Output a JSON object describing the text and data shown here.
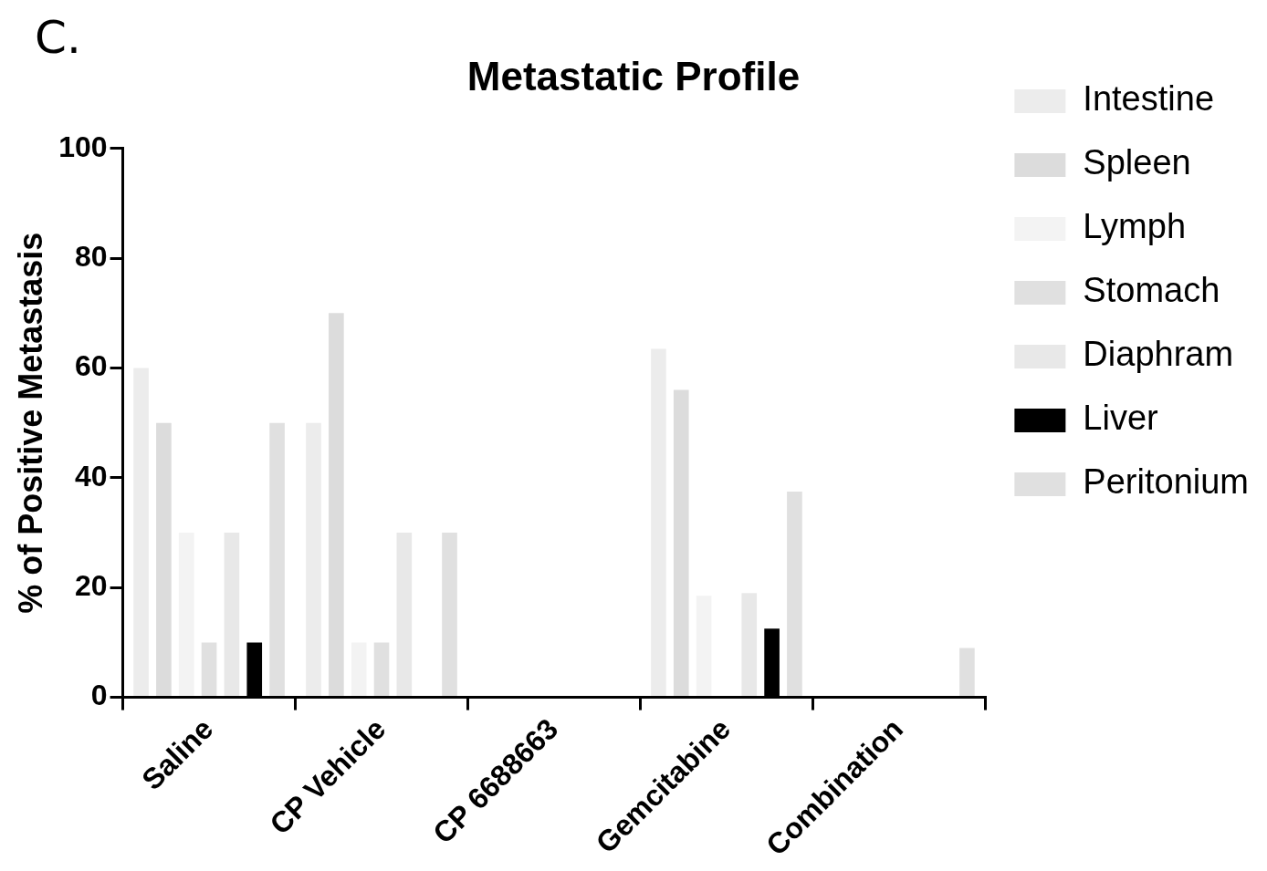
{
  "chart_data": {
    "type": "bar",
    "title": "Metastatic Profile",
    "ylabel": "% of Positive Metastasis",
    "annotations": [
      "C."
    ],
    "categories": [
      "Saline",
      "CP Vehicle",
      "CP 6688663",
      "Gemcitabine",
      "Combination"
    ],
    "series": [
      {
        "name": "Intestine",
        "color": "#ececec",
        "values": [
          60,
          50,
          0,
          63.5,
          0
        ]
      },
      {
        "name": "Spleen",
        "color": "#dcdcdc",
        "values": [
          50,
          70,
          0,
          56,
          0
        ]
      },
      {
        "name": "Lymph",
        "color": "#f3f3f3",
        "values": [
          30,
          10,
          0,
          18.5,
          0
        ]
      },
      {
        "name": "Stomach",
        "color": "#e0e0e0",
        "values": [
          10,
          10,
          0,
          0,
          0
        ]
      },
      {
        "name": "Diaphram",
        "color": "#e8e8e8",
        "values": [
          30,
          30,
          0,
          19,
          0
        ]
      },
      {
        "name": "Liver",
        "color": "#000000",
        "values": [
          10,
          0,
          0,
          12.5,
          0
        ]
      },
      {
        "name": "Peritonium",
        "color": "#e0e0e0",
        "values": [
          50,
          30,
          0,
          37.5,
          9
        ]
      }
    ],
    "ylim": [
      0,
      100
    ],
    "yticks": [
      0,
      20,
      40,
      60,
      80,
      100
    ],
    "grid": false,
    "legend": "right"
  }
}
